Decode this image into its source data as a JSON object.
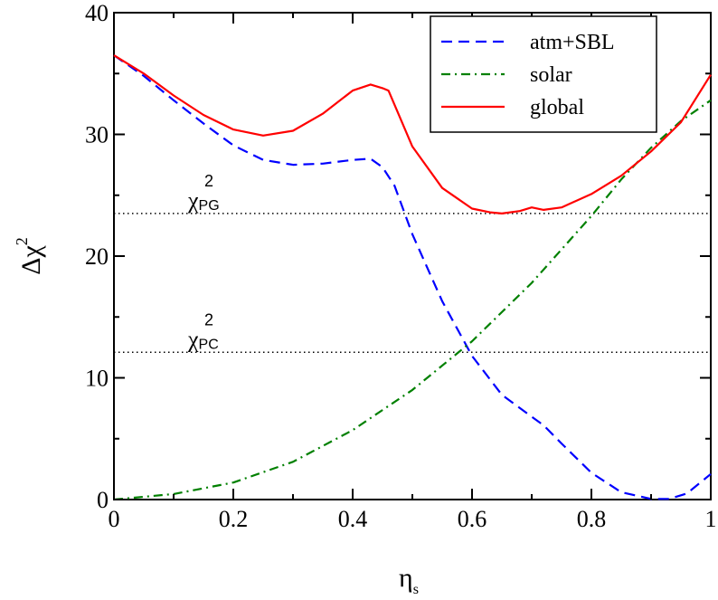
{
  "chart_data": {
    "type": "line",
    "title": "",
    "xlabel": "η",
    "xlabel_subscript": "s",
    "ylabel": "Δχ",
    "ylabel_superscript": "2",
    "xlim": [
      0,
      1
    ],
    "ylim": [
      0,
      40
    ],
    "xticks": [
      0,
      0.2,
      0.4,
      0.6,
      0.8,
      1
    ],
    "xtick_labels": [
      "0",
      "0.2",
      "0.4",
      "0.6",
      "0.8",
      "1"
    ],
    "yticks": [
      0,
      10,
      20,
      30,
      40
    ],
    "ytick_labels": [
      "0",
      "10",
      "20",
      "30",
      "40"
    ],
    "grid": false,
    "legend_position": "top-right",
    "series": [
      {
        "name": "atm+SBL",
        "color": "#0000ff",
        "style": "dashed",
        "x": [
          0,
          0.05,
          0.1,
          0.15,
          0.2,
          0.25,
          0.3,
          0.35,
          0.4,
          0.43,
          0.45,
          0.47,
          0.5,
          0.55,
          0.6,
          0.65,
          0.7,
          0.72,
          0.75,
          0.8,
          0.85,
          0.9,
          0.93,
          0.96,
          1.0
        ],
        "y": [
          36.5,
          34.8,
          32.8,
          30.9,
          29.1,
          27.9,
          27.5,
          27.6,
          27.9,
          28.0,
          27.3,
          25.8,
          21.8,
          16.3,
          11.8,
          8.6,
          6.8,
          6.1,
          4.6,
          2.2,
          0.6,
          0.05,
          0.05,
          0.5,
          2.1
        ]
      },
      {
        "name": "solar",
        "color": "#008000",
        "style": "dashdot",
        "x": [
          0,
          0.1,
          0.2,
          0.3,
          0.4,
          0.5,
          0.6,
          0.7,
          0.8,
          0.85,
          0.9,
          0.95,
          1.0
        ],
        "y": [
          0,
          0.45,
          1.4,
          3.1,
          5.7,
          9.0,
          13.0,
          17.8,
          23.3,
          26.3,
          28.9,
          31.1,
          32.8
        ]
      },
      {
        "name": "global",
        "color": "#ff0000",
        "style": "solid",
        "x": [
          0,
          0.05,
          0.1,
          0.15,
          0.2,
          0.25,
          0.3,
          0.35,
          0.4,
          0.43,
          0.45,
          0.46,
          0.5,
          0.55,
          0.6,
          0.63,
          0.65,
          0.68,
          0.7,
          0.72,
          0.75,
          0.8,
          0.85,
          0.9,
          0.95,
          1.0
        ],
        "y": [
          36.5,
          35.0,
          33.2,
          31.6,
          30.4,
          29.9,
          30.3,
          31.7,
          33.6,
          34.1,
          33.8,
          33.6,
          29.0,
          25.6,
          23.9,
          23.6,
          23.5,
          23.7,
          24.0,
          23.8,
          24.0,
          25.1,
          26.6,
          28.6,
          31.0,
          34.9
        ]
      }
    ],
    "reference_lines": [
      {
        "label_main": "χ",
        "label_sup": "2",
        "label_sub": "PG",
        "y": 23.5
      },
      {
        "label_main": "χ",
        "label_sup": "2",
        "label_sub": "PC",
        "y": 12.1
      }
    ]
  }
}
